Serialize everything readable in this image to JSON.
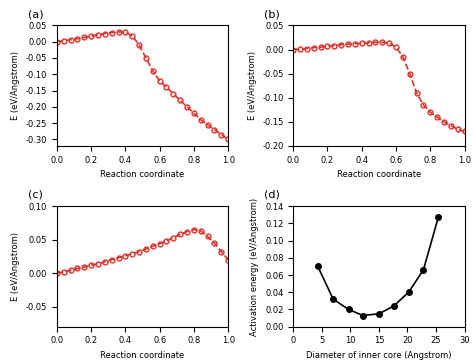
{
  "chart_data": [
    {
      "type": "line",
      "title": "(a)",
      "x_label": "Reaction coordinate",
      "y_label": "E (eV/Angstrom)",
      "x": [
        0.0,
        0.04,
        0.08,
        0.12,
        0.16,
        0.2,
        0.24,
        0.28,
        0.32,
        0.36,
        0.4,
        0.44,
        0.48,
        0.52,
        0.56,
        0.6,
        0.64,
        0.68,
        0.72,
        0.76,
        0.8,
        0.84,
        0.88,
        0.92,
        0.96,
        1.0
      ],
      "values": [
        0.0,
        0.003,
        0.006,
        0.009,
        0.013,
        0.017,
        0.021,
        0.025,
        0.028,
        0.03,
        0.029,
        0.018,
        -0.01,
        -0.05,
        -0.09,
        -0.12,
        -0.14,
        -0.16,
        -0.18,
        -0.2,
        -0.22,
        -0.24,
        -0.255,
        -0.27,
        -0.285,
        -0.3
      ],
      "color": "#e0302a",
      "marker": "circle_open",
      "line_style": "dashed",
      "xlim": [
        0.0,
        1.0
      ],
      "xticks": [
        0.0,
        0.2,
        0.4,
        0.6,
        0.8,
        1.0
      ],
      "ylim": [
        -0.32,
        0.05
      ],
      "yticks": [
        {
          "value": -0.3,
          "label": "-0.30"
        },
        {
          "value": -0.25,
          "label": "-0.25"
        },
        {
          "value": -0.2,
          "label": "-0.20"
        },
        {
          "value": -0.15,
          "label": "-0.15"
        },
        {
          "value": -0.1,
          "label": "-0.10"
        },
        -0.05,
        {
          "value": 0.0,
          "label": "0.00"
        },
        0.05
      ]
    },
    {
      "type": "line",
      "title": "(b)",
      "x_label": "Reaction coordinate",
      "y_label": "E (eV/Angstrom)",
      "x": [
        0.0,
        0.04,
        0.08,
        0.12,
        0.16,
        0.2,
        0.24,
        0.28,
        0.32,
        0.36,
        0.4,
        0.44,
        0.48,
        0.52,
        0.56,
        0.6,
        0.64,
        0.68,
        0.72,
        0.76,
        0.8,
        0.84,
        0.88,
        0.92,
        0.96,
        1.0
      ],
      "values": [
        0.0,
        0.001,
        0.002,
        0.004,
        0.005,
        0.007,
        0.008,
        0.01,
        0.011,
        0.012,
        0.013,
        0.014,
        0.015,
        0.015,
        0.013,
        0.005,
        -0.015,
        -0.05,
        -0.09,
        -0.115,
        -0.13,
        -0.14,
        -0.15,
        -0.158,
        -0.165,
        -0.17
      ],
      "color": "#e0302a",
      "marker": "circle_open",
      "line_style": "dashed",
      "xlim": [
        0.0,
        1.0
      ],
      "xticks": [
        0.0,
        0.2,
        0.4,
        0.6,
        0.8,
        1.0
      ],
      "ylim": [
        -0.2,
        0.05
      ],
      "yticks": [
        {
          "value": -0.2,
          "label": "-0.20"
        },
        {
          "value": -0.15,
          "label": "-0.15"
        },
        {
          "value": -0.1,
          "label": "-0.10"
        },
        -0.05,
        {
          "value": 0.0,
          "label": "0.00"
        },
        0.05
      ]
    },
    {
      "type": "line",
      "title": "(c)",
      "x_label": "Reaction coordinate",
      "y_label": "E (eV/Angstrom)",
      "x": [
        0.0,
        0.04,
        0.08,
        0.12,
        0.16,
        0.2,
        0.24,
        0.28,
        0.32,
        0.36,
        0.4,
        0.44,
        0.48,
        0.52,
        0.56,
        0.6,
        0.64,
        0.68,
        0.72,
        0.76,
        0.8,
        0.84,
        0.88,
        0.92,
        0.96,
        1.0
      ],
      "values": [
        0.0,
        0.002,
        0.004,
        0.007,
        0.009,
        0.012,
        0.014,
        0.017,
        0.02,
        0.023,
        0.026,
        0.029,
        0.032,
        0.036,
        0.04,
        0.044,
        0.048,
        0.053,
        0.058,
        0.062,
        0.065,
        0.063,
        0.055,
        0.045,
        0.032,
        0.02
      ],
      "color": "#e0302a",
      "marker": "circle_open",
      "line_style": "dashed",
      "xlim": [
        0.0,
        1.0
      ],
      "xticks": [
        0.0,
        0.2,
        0.4,
        0.6,
        0.8,
        1.0
      ],
      "ylim": [
        -0.08,
        0.1
      ],
      "yticks": [
        -0.05,
        {
          "value": 0.0,
          "label": "0.00"
        },
        0.05,
        {
          "value": 0.1,
          "label": "0.10"
        }
      ]
    },
    {
      "type": "line",
      "title": "(d)",
      "x_label": "Diameter of inner core (Angstrom)",
      "y_label": "Activation energy (eV/Angstrom)",
      "x": [
        4.3,
        7.0,
        9.7,
        12.2,
        15.0,
        17.6,
        20.2,
        22.8,
        25.4
      ],
      "values": [
        0.07,
        0.032,
        0.02,
        0.013,
        0.015,
        0.024,
        0.04,
        0.066,
        0.127
      ],
      "color": "#000000",
      "marker": "circle",
      "line_style": "solid",
      "xlim": [
        0,
        30
      ],
      "xticks": [
        0,
        5,
        10,
        15,
        20,
        25,
        30
      ],
      "ylim": [
        0.0,
        0.14
      ],
      "yticks": [
        {
          "value": 0.0,
          "label": "0.00"
        },
        0.02,
        0.04,
        0.06,
        0.08,
        {
          "value": 0.1,
          "label": "0.10"
        },
        0.12,
        0.14
      ]
    }
  ]
}
